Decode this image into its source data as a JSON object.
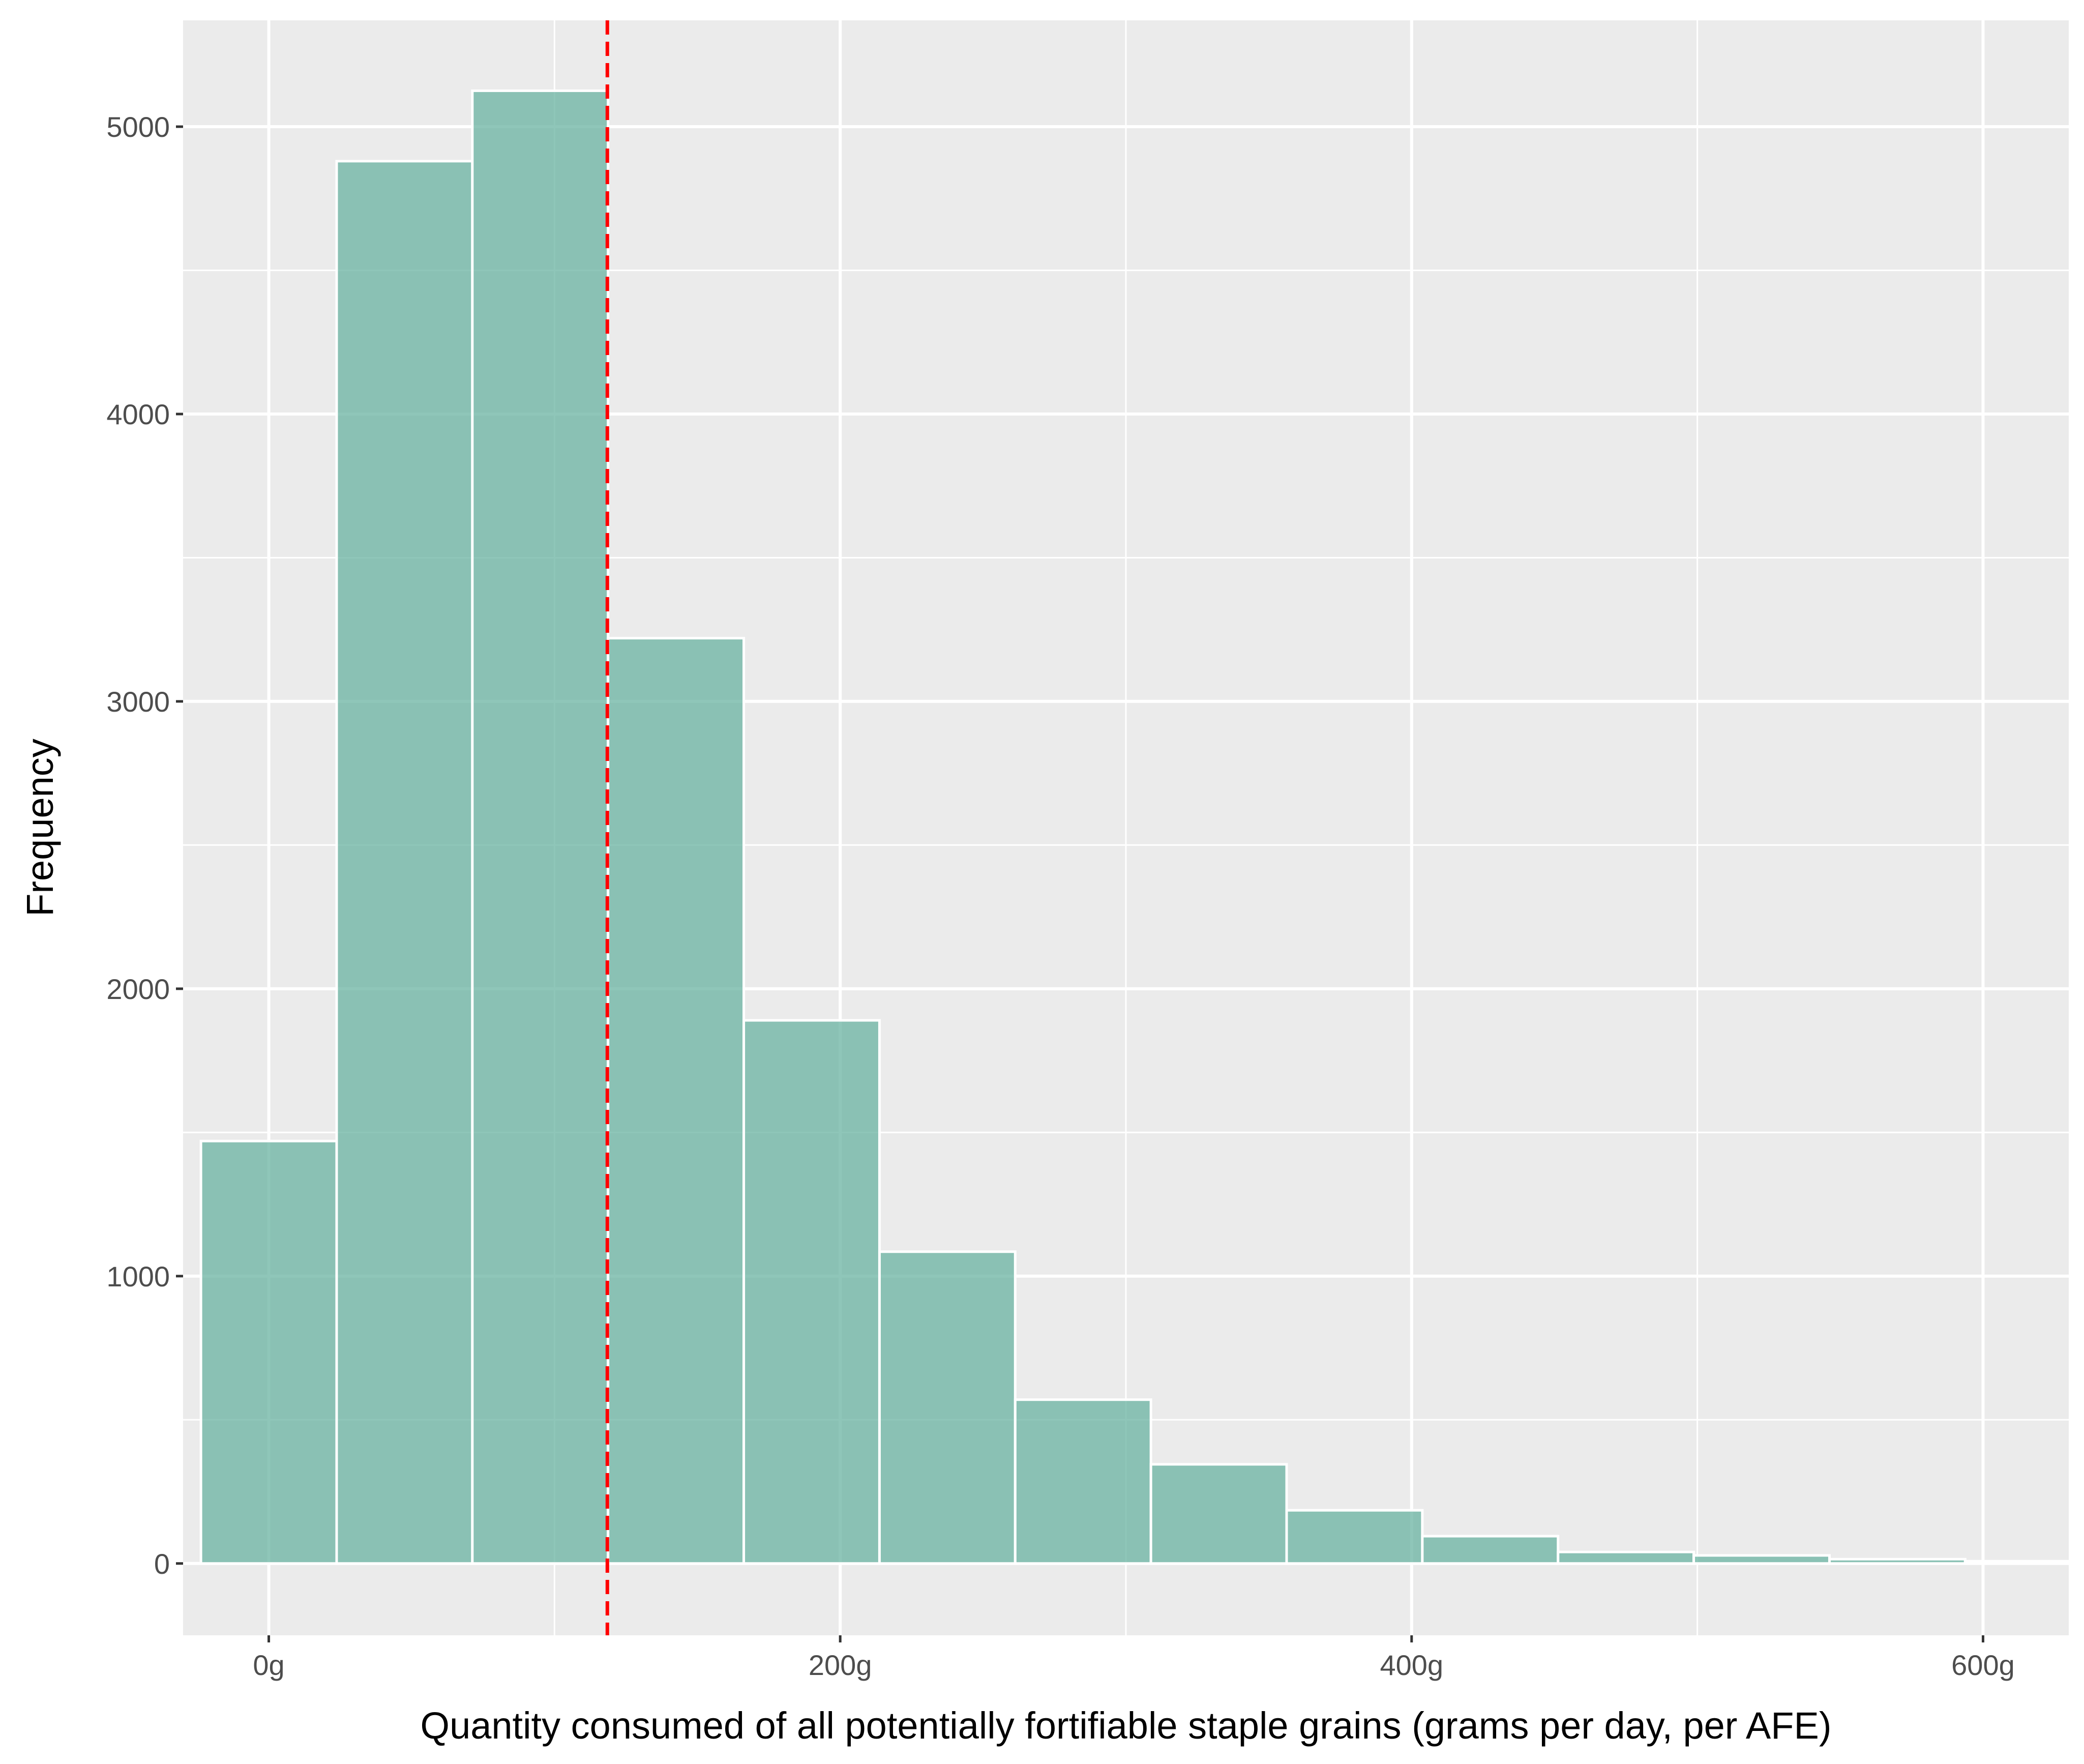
{
  "chart_data": {
    "type": "bar",
    "subtype": "histogram",
    "title": "",
    "xlabel": "Quantity consumed of all potentially fortifiable staple grains (grams per day, per AFE)",
    "ylabel": "Frequency",
    "bin_width": 47.5,
    "bins": [
      {
        "x0": -23.75,
        "x1": 23.75,
        "count": 1470
      },
      {
        "x0": 23.75,
        "x1": 71.25,
        "count": 4880
      },
      {
        "x0": 71.25,
        "x1": 118.75,
        "count": 5125
      },
      {
        "x0": 118.75,
        "x1": 166.25,
        "count": 3220
      },
      {
        "x0": 166.25,
        "x1": 213.75,
        "count": 1890
      },
      {
        "x0": 213.75,
        "x1": 261.25,
        "count": 1085
      },
      {
        "x0": 261.25,
        "x1": 308.75,
        "count": 570
      },
      {
        "x0": 308.75,
        "x1": 356.25,
        "count": 345
      },
      {
        "x0": 356.25,
        "x1": 403.75,
        "count": 185
      },
      {
        "x0": 403.75,
        "x1": 451.25,
        "count": 95
      },
      {
        "x0": 451.25,
        "x1": 498.75,
        "count": 40
      },
      {
        "x0": 498.75,
        "x1": 546.25,
        "count": 28
      },
      {
        "x0": 546.25,
        "x1": 593.75,
        "count": 15
      },
      {
        "x0": 593.75,
        "x1": 641.25,
        "count": 8
      }
    ],
    "reference_line": {
      "x": 118.5,
      "style": "dashed",
      "color": "#ff0000"
    },
    "xlim": [
      -30,
      630
    ],
    "ylim": [
      -250,
      5370
    ],
    "x_ticks": [
      {
        "value": 0,
        "label": "0g"
      },
      {
        "value": 200,
        "label": "200g"
      },
      {
        "value": 400,
        "label": "400g"
      },
      {
        "value": 600,
        "label": "600g"
      }
    ],
    "y_ticks": [
      {
        "value": 0,
        "label": "0"
      },
      {
        "value": 1000,
        "label": "1000"
      },
      {
        "value": 2000,
        "label": "2000"
      },
      {
        "value": 3000,
        "label": "3000"
      },
      {
        "value": 4000,
        "label": "4000"
      },
      {
        "value": 5000,
        "label": "5000"
      }
    ],
    "grid": true,
    "colors": {
      "bar_fill": "#69b3a2",
      "bar_stroke": "#ffffff",
      "panel_background": "#ebebeb",
      "gridline": "#ffffff",
      "reference_line": "#ff0000",
      "tick_text": "#4d4d4d",
      "axis_title_text": "#000000"
    }
  }
}
